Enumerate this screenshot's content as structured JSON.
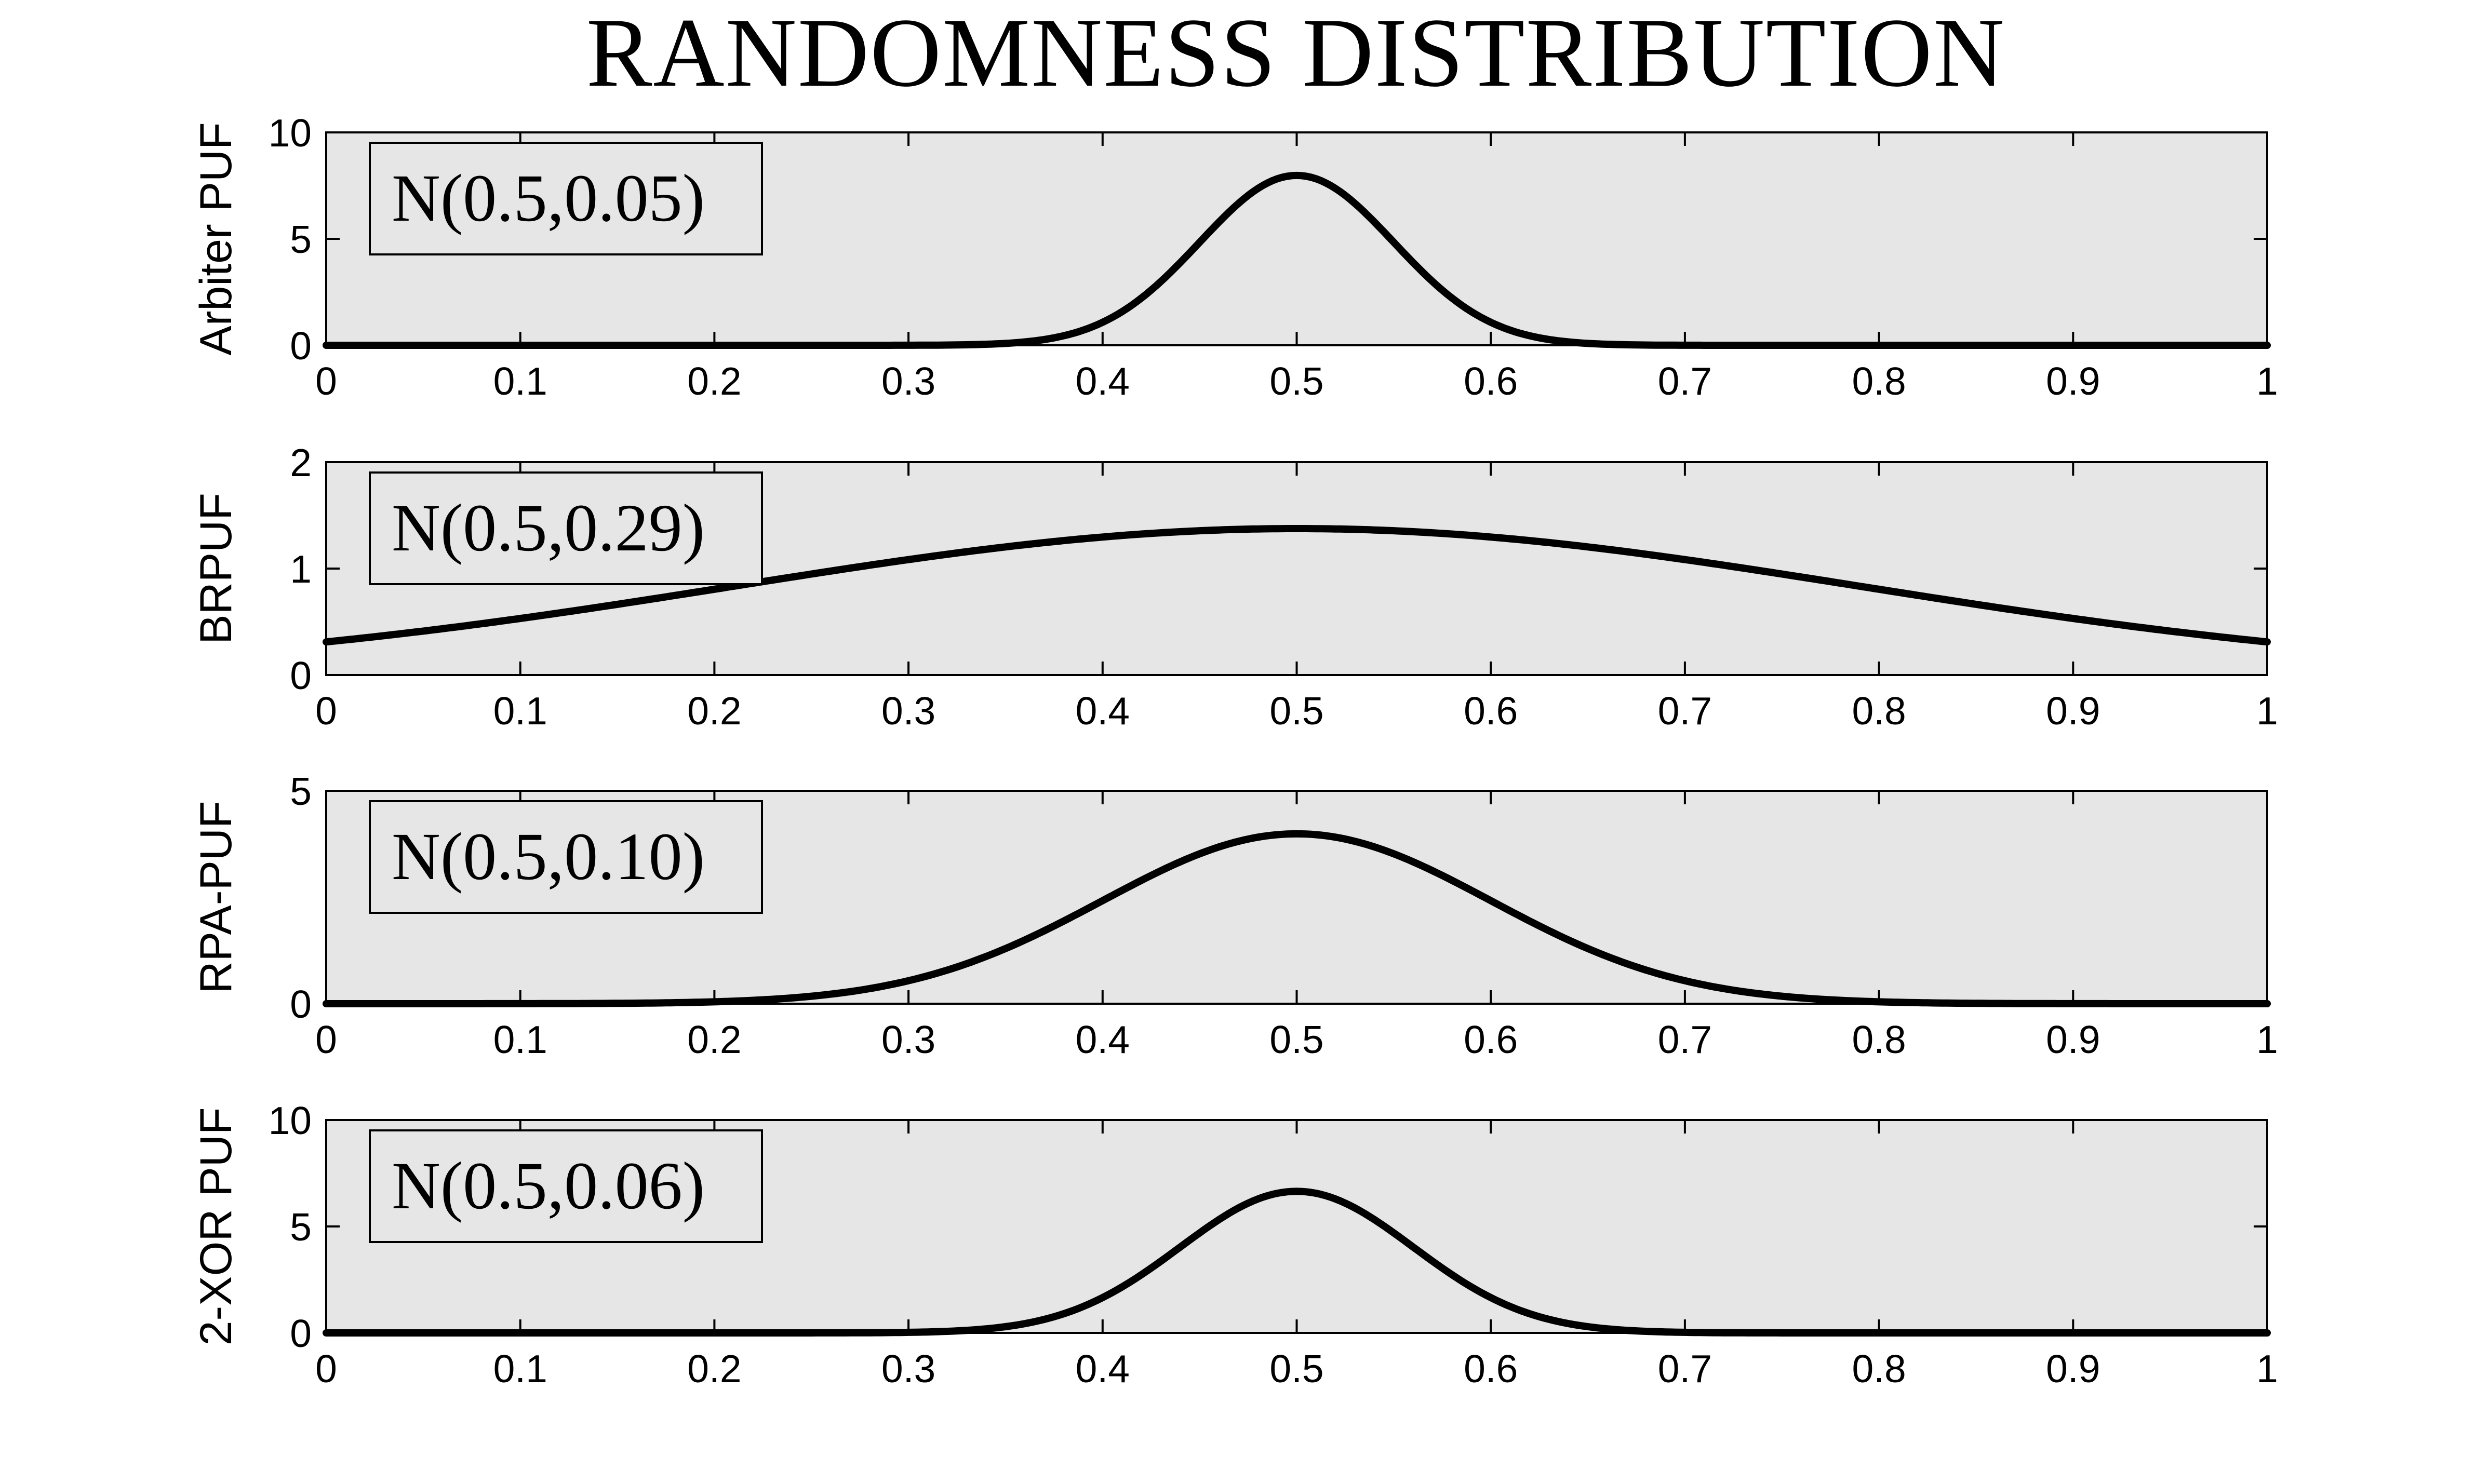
{
  "figure_title": "RANDOMNESS DISTRIBUTION",
  "colors": {
    "background": "#ffffff",
    "axes_face": "#e6e6e6",
    "line": "#000000"
  },
  "chart_data": [
    {
      "type": "line",
      "ylabel": "Arbiter PUF",
      "legend": "N(0.5,0.05)",
      "legend_position": "top-left",
      "distribution": {
        "mean": 0.5,
        "sigma": 0.05
      },
      "xlim": [
        0,
        1
      ],
      "ylim": [
        0,
        10
      ],
      "xticks": [
        "0",
        "0.1",
        "0.2",
        "0.3",
        "0.4",
        "0.5",
        "0.6",
        "0.7",
        "0.8",
        "0.9",
        "1"
      ],
      "yticks": [
        "0",
        "5",
        "10"
      ],
      "grid": false
    },
    {
      "type": "line",
      "ylabel": "BRPUF",
      "legend": "N(0.5,0.29)",
      "legend_position": "top-left",
      "distribution": {
        "mean": 0.5,
        "sigma": 0.29
      },
      "xlim": [
        0,
        1
      ],
      "ylim": [
        0,
        2
      ],
      "xticks": [
        "0",
        "0.1",
        "0.2",
        "0.3",
        "0.4",
        "0.5",
        "0.6",
        "0.7",
        "0.8",
        "0.9",
        "1"
      ],
      "yticks": [
        "0",
        "1",
        "2"
      ],
      "grid": false
    },
    {
      "type": "line",
      "ylabel": "RPA-PUF",
      "legend": "N(0.5,0.10)",
      "legend_position": "top-left",
      "distribution": {
        "mean": 0.5,
        "sigma": 0.1
      },
      "xlim": [
        0,
        1
      ],
      "ylim": [
        0,
        5
      ],
      "xticks": [
        "0",
        "0.1",
        "0.2",
        "0.3",
        "0.4",
        "0.5",
        "0.6",
        "0.7",
        "0.8",
        "0.9",
        "1"
      ],
      "yticks": [
        "0",
        "5"
      ],
      "grid": false
    },
    {
      "type": "line",
      "ylabel": "2-XOR PUF",
      "legend": "N(0.5,0.06)",
      "legend_position": "top-left",
      "distribution": {
        "mean": 0.5,
        "sigma": 0.06
      },
      "xlim": [
        0,
        1
      ],
      "ylim": [
        0,
        10
      ],
      "xticks": [
        "0",
        "0.1",
        "0.2",
        "0.3",
        "0.4",
        "0.5",
        "0.6",
        "0.7",
        "0.8",
        "0.9",
        "1"
      ],
      "yticks": [
        "0",
        "5",
        "10"
      ],
      "grid": false
    }
  ]
}
